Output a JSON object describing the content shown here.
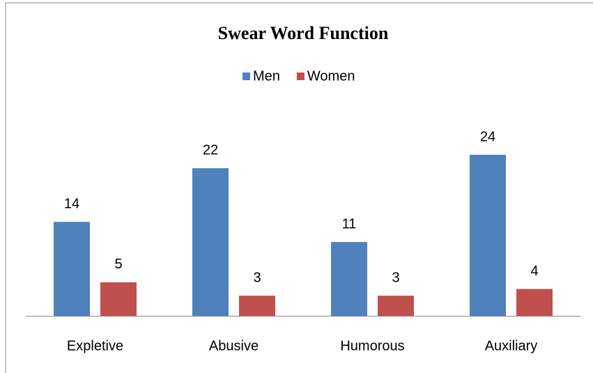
{
  "chart_data": {
    "type": "bar",
    "title": "Swear Word Function",
    "categories": [
      "Expletive",
      "Abusive",
      "Humorous",
      "Auxiliary"
    ],
    "series": [
      {
        "name": "Men",
        "color": "#4f81bd",
        "values": [
          14,
          22,
          11,
          24
        ]
      },
      {
        "name": "Women",
        "color": "#c0504d",
        "values": [
          5,
          3,
          3,
          4
        ]
      }
    ],
    "legend": "top"
  }
}
